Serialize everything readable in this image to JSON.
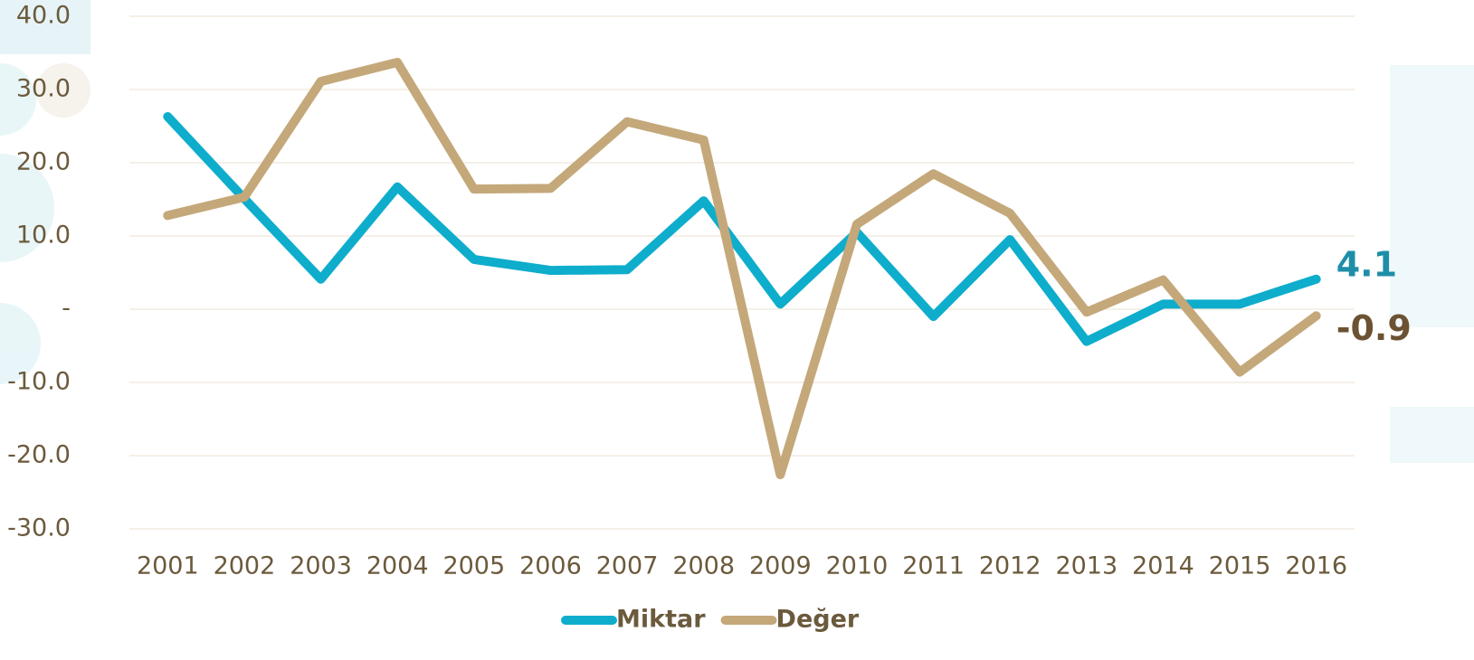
{
  "chart_data": {
    "type": "line",
    "categories": [
      "2001",
      "2002",
      "2003",
      "2004",
      "2005",
      "2006",
      "2007",
      "2008",
      "2009",
      "2010",
      "2011",
      "2012",
      "2013",
      "2014",
      "2015",
      "2016"
    ],
    "series": [
      {
        "name": "Miktar",
        "color": "#0eadcc",
        "values": [
          26.3,
          15.1,
          4.1,
          16.7,
          6.8,
          5.3,
          5.4,
          14.8,
          0.7,
          10.5,
          -1.0,
          9.5,
          -4.4,
          0.7,
          0.7,
          4.1
        ]
      },
      {
        "name": "Değer",
        "color": "#c4a87a",
        "values": [
          12.8,
          15.3,
          31.1,
          33.7,
          16.4,
          16.5,
          25.6,
          23.1,
          -22.6,
          11.6,
          18.5,
          13.1,
          -0.4,
          4.0,
          -8.6,
          -0.9
        ]
      }
    ],
    "ylim": [
      -30,
      40
    ],
    "yticks": [
      {
        "value": -30,
        "label": "-30.0"
      },
      {
        "value": -20,
        "label": "-20.0"
      },
      {
        "value": -10,
        "label": "-10.0"
      },
      {
        "value": 0,
        "label": "-"
      },
      {
        "value": 10,
        "label": "10.0"
      },
      {
        "value": 20,
        "label": "20.0"
      },
      {
        "value": 30,
        "label": "30.0"
      },
      {
        "value": 40,
        "label": "40.0"
      }
    ],
    "grid": true
  }
}
